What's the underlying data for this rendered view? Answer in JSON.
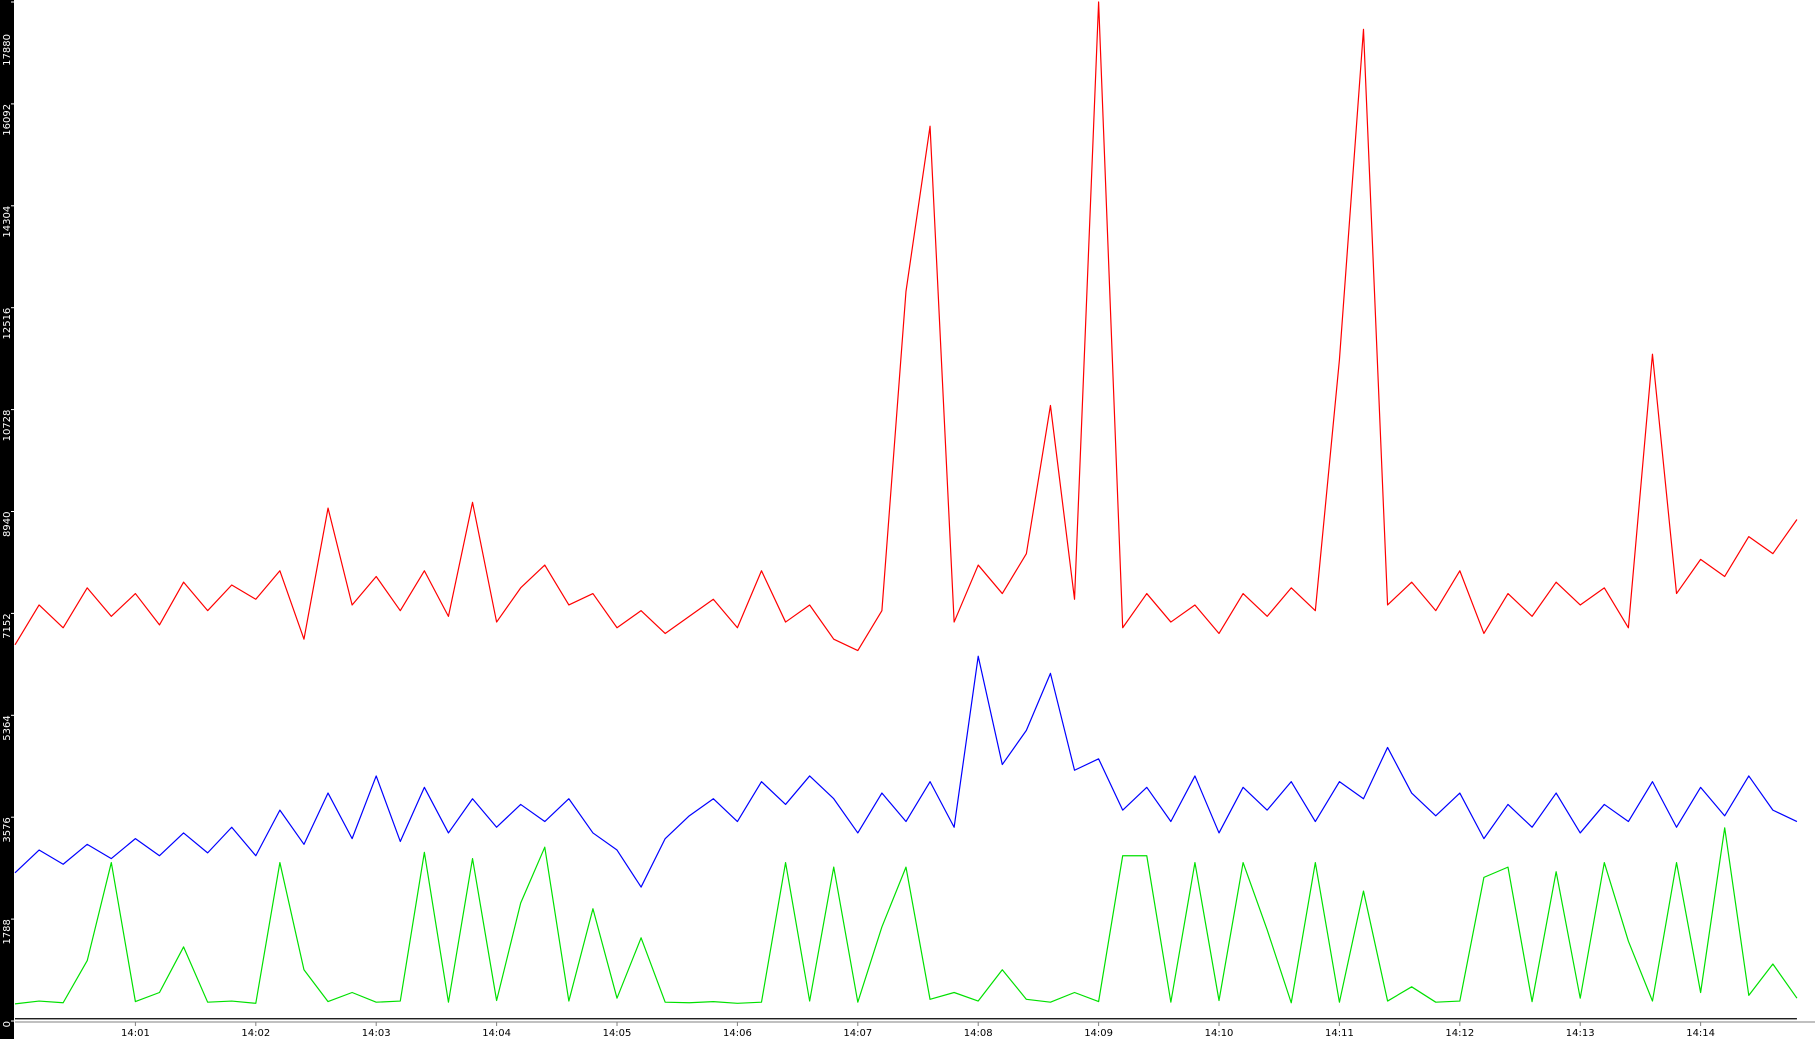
{
  "chart_data": {
    "type": "line",
    "x": [
      0,
      0.2,
      0.4,
      0.6,
      0.8,
      1,
      1.2,
      1.4,
      1.6,
      1.8,
      2,
      2.2,
      2.4,
      2.6,
      2.8,
      3,
      3.2,
      3.4,
      3.6,
      3.8,
      4,
      4.2,
      4.4,
      4.6,
      4.8,
      5,
      5.2,
      5.4,
      5.6,
      5.8,
      6,
      6.2,
      6.4,
      6.6,
      6.8,
      7,
      7.2,
      7.4,
      7.6,
      7.8,
      8,
      8.2,
      8.4,
      8.6,
      8.8,
      9,
      9.2,
      9.4,
      9.6,
      9.8,
      10,
      10.2,
      10.4,
      10.6,
      10.8,
      11,
      11.2,
      11.4,
      11.6,
      11.8,
      12,
      12.2,
      12.4,
      12.6,
      12.8,
      13,
      13.2,
      13.4,
      13.6,
      13.8,
      14,
      14.2,
      14.4,
      14.6,
      14.8
    ],
    "series": [
      {
        "color": "#ff0000",
        "values": [
          6600,
          7300,
          6900,
          7600,
          7100,
          7500,
          6950,
          7700,
          7200,
          7650,
          7400,
          7900,
          6700,
          9000,
          7300,
          7800,
          7200,
          7900,
          7100,
          9100,
          7000,
          7600,
          8000,
          7300,
          7500,
          6900,
          7200,
          6800,
          7100,
          7400,
          6900,
          7900,
          7000,
          7300,
          6700,
          6500,
          7200,
          12800,
          15700,
          7000,
          8000,
          7500,
          8200,
          10800,
          7400,
          17880,
          6900,
          7500,
          7000,
          7300,
          6800,
          7500,
          7100,
          7600,
          7200,
          11600,
          17400,
          7300,
          7700,
          7200,
          7900,
          6800,
          7500,
          7100,
          7700,
          7300,
          7600,
          6900,
          11700,
          7500,
          8100,
          7800,
          8500,
          8200,
          8800
        ]
      },
      {
        "color": "#0000ff",
        "values": [
          2600,
          3000,
          2750,
          3100,
          2850,
          3200,
          2900,
          3300,
          2950,
          3400,
          2900,
          3700,
          3100,
          4000,
          3200,
          4300,
          3150,
          4100,
          3300,
          3900,
          3400,
          3800,
          3500,
          3900,
          3300,
          3000,
          2350,
          3200,
          3600,
          3900,
          3500,
          4200,
          3800,
          4300,
          3900,
          3300,
          4000,
          3500,
          4200,
          3400,
          6400,
          4500,
          5100,
          6100,
          4400,
          4600,
          3700,
          4100,
          3500,
          4300,
          3300,
          4100,
          3700,
          4200,
          3500,
          4200,
          3900,
          4800,
          4000,
          3600,
          4000,
          3200,
          3800,
          3400,
          4000,
          3300,
          3800,
          3500,
          4200,
          3400,
          4100,
          3600,
          4300,
          3700,
          3500
        ]
      },
      {
        "color": "#00e000",
        "values": [
          300,
          350,
          320,
          1060,
          2780,
          340,
          500,
          1300,
          330,
          350,
          310,
          2780,
          900,
          340,
          500,
          330,
          350,
          2960,
          330,
          2850,
          360,
          2070,
          3050,
          350,
          1970,
          400,
          1460,
          330,
          320,
          340,
          310,
          330,
          2780,
          350,
          2700,
          330,
          1650,
          2700,
          380,
          500,
          350,
          900,
          380,
          330,
          500,
          340,
          2900,
          2900,
          330,
          2780,
          360,
          2780,
          1600,
          320,
          2780,
          330,
          2280,
          350,
          600,
          330,
          350,
          2520,
          2700,
          340,
          2620,
          400,
          2780,
          1400,
          350,
          2780,
          500,
          3390,
          450,
          1000,
          400
        ]
      },
      {
        "color": "#000000",
        "values": [
          40,
          40,
          40,
          40,
          40,
          40,
          40,
          40,
          40,
          40,
          40,
          40,
          40,
          40,
          40,
          40,
          40,
          40,
          40,
          40,
          40,
          40,
          40,
          40,
          40,
          40,
          40,
          40,
          40,
          40,
          40,
          40,
          40,
          40,
          40,
          40,
          40,
          40,
          40,
          40,
          40,
          40,
          40,
          40,
          40,
          40,
          40,
          40,
          40,
          40,
          40,
          40,
          40,
          40,
          40,
          40,
          40,
          40,
          40,
          40,
          40,
          40,
          40,
          40,
          40,
          40,
          40,
          40,
          40,
          40,
          40,
          40,
          40,
          40,
          40
        ]
      }
    ],
    "xlim": [
      0,
      14.95
    ],
    "xticks": [
      {
        "value": 1,
        "label": "14:01"
      },
      {
        "value": 2,
        "label": "14:02"
      },
      {
        "value": 3,
        "label": "14:03"
      },
      {
        "value": 4,
        "label": "14:04"
      },
      {
        "value": 5,
        "label": "14:05"
      },
      {
        "value": 6,
        "label": "14:06"
      },
      {
        "value": 7,
        "label": "14:07"
      },
      {
        "value": 8,
        "label": "14:08"
      },
      {
        "value": 9,
        "label": "14:09"
      },
      {
        "value": 10,
        "label": "14:10"
      },
      {
        "value": 11,
        "label": "14:11"
      },
      {
        "value": 12,
        "label": "14:12"
      },
      {
        "value": 13,
        "label": "14:13"
      },
      {
        "value": 14,
        "label": "14:14"
      }
    ],
    "ylim": [
      0,
      17880
    ],
    "yticks": [
      0,
      1788,
      3576,
      5364,
      7152,
      8940,
      10728,
      12516,
      14304,
      16092,
      17880
    ],
    "grid": false
  }
}
